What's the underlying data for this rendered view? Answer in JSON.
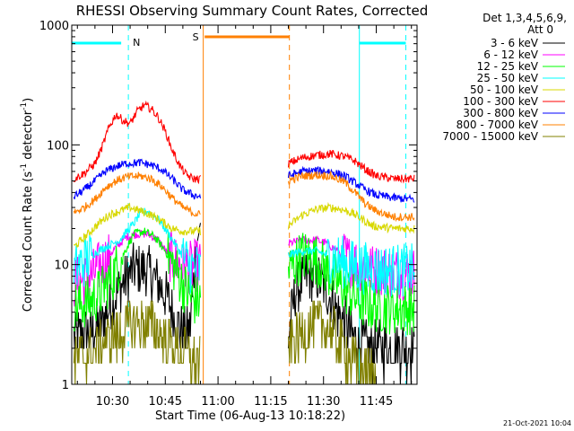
{
  "chart_data": {
    "type": "line",
    "title": "RHESSI Observing Summary Count Rates, Corrected",
    "xlabel": "Start Time (06-Aug-13 10:18:22)",
    "ylabel_main": "Corrected Count Rate (s",
    "ylabel_sup1": "-1",
    "ylabel_mid": " detector",
    "ylabel_sup2": "-1",
    "ylabel_end": ")",
    "yscale": "log",
    "ylim": [
      1,
      1000
    ],
    "xlim_minutes": [
      10.3,
      11.9
    ],
    "y_ticks": [
      {
        "value": 1,
        "label": "1"
      },
      {
        "value": 10,
        "label": "10"
      },
      {
        "value": 100,
        "label": "100"
      },
      {
        "value": 1000,
        "label": "1000"
      }
    ],
    "x_ticks": [
      {
        "value": 30,
        "label": "10:30"
      },
      {
        "value": 45,
        "label": "10:45"
      },
      {
        "value": 60,
        "label": "11:00"
      },
      {
        "value": 75,
        "label": "11:15"
      },
      {
        "value": 90,
        "label": "11:30"
      },
      {
        "value": 105,
        "label": "11:45"
      }
    ],
    "x_range_min": [
      18.4,
      116.6
    ],
    "legend_header": [
      "Det 1,3,4,5,6,9,",
      "Att 0"
    ],
    "series": [
      {
        "name": "3 - 6 keV",
        "color": "#000000",
        "seg1": [
          [
            19,
            2.5
          ],
          [
            24,
            2.7
          ],
          [
            27,
            3.2
          ],
          [
            30,
            5
          ],
          [
            33,
            7
          ],
          [
            36,
            9.2
          ],
          [
            40,
            9
          ],
          [
            43,
            7
          ],
          [
            46,
            5
          ],
          [
            48,
            3.3
          ],
          [
            50,
            2.8
          ],
          [
            52,
            2.9
          ],
          [
            53,
            7
          ],
          [
            54,
            15
          ],
          [
            55,
            22
          ]
        ],
        "seg2": [
          [
            80,
            2.5
          ],
          [
            82,
            6
          ],
          [
            85,
            8
          ],
          [
            88,
            8
          ],
          [
            91,
            6
          ],
          [
            94,
            4
          ],
          [
            97,
            3
          ],
          [
            100,
            2.2
          ],
          [
            103,
            2
          ],
          [
            110,
            2
          ],
          [
            116,
            2
          ]
        ]
      },
      {
        "name": "6 - 12 keV",
        "color": "#ff00ff",
        "seg1": [
          [
            19,
            7
          ],
          [
            24,
            8
          ],
          [
            28,
            11
          ],
          [
            31,
            14
          ],
          [
            34,
            17
          ],
          [
            37,
            18
          ],
          [
            40,
            18
          ],
          [
            43,
            16
          ],
          [
            46,
            12
          ],
          [
            49,
            10
          ],
          [
            52,
            9.5
          ],
          [
            55,
            10
          ]
        ],
        "seg2": [
          [
            80,
            15
          ],
          [
            84,
            16
          ],
          [
            88,
            16
          ],
          [
            91,
            15
          ],
          [
            94,
            13
          ],
          [
            97,
            11
          ],
          [
            100,
            10
          ],
          [
            104,
            9
          ],
          [
            110,
            8.5
          ],
          [
            116,
            8.5
          ]
        ]
      },
      {
        "name": "12 - 25 keV",
        "color": "#00ff00",
        "seg1": [
          [
            19,
            4.5
          ],
          [
            24,
            5
          ],
          [
            27,
            6
          ],
          [
            30,
            8
          ],
          [
            33,
            12
          ],
          [
            36,
            18
          ],
          [
            39,
            19
          ],
          [
            42,
            17
          ],
          [
            45,
            13
          ],
          [
            48,
            9
          ],
          [
            51,
            6
          ],
          [
            53,
            5
          ],
          [
            55,
            5
          ]
        ],
        "seg2": [
          [
            80,
            9
          ],
          [
            84,
            12
          ],
          [
            88,
            11
          ],
          [
            91,
            9
          ],
          [
            94,
            7
          ],
          [
            97,
            6
          ],
          [
            100,
            5
          ],
          [
            104,
            4.5
          ],
          [
            110,
            4.3
          ],
          [
            116,
            4.3
          ]
        ]
      },
      {
        "name": "25 - 50 keV",
        "color": "#00ffff",
        "seg1": [
          [
            19,
            9
          ],
          [
            24,
            12
          ],
          [
            28,
            14
          ],
          [
            32,
            16
          ],
          [
            36,
            22
          ],
          [
            38,
            27
          ],
          [
            40,
            28
          ],
          [
            43,
            24
          ],
          [
            46,
            18
          ],
          [
            49,
            13
          ],
          [
            52,
            9.5
          ],
          [
            55,
            9
          ]
        ],
        "seg2": [
          [
            80,
            12
          ],
          [
            84,
            13
          ],
          [
            88,
            13
          ],
          [
            91,
            12
          ],
          [
            94,
            11
          ],
          [
            97,
            10
          ],
          [
            100,
            9.5
          ],
          [
            106,
            9
          ],
          [
            116,
            9
          ]
        ]
      },
      {
        "name": "50 - 100 keV",
        "color": "#d8d800",
        "seg1": [
          [
            19,
            14
          ],
          [
            23,
            18
          ],
          [
            26,
            22
          ],
          [
            29,
            26
          ],
          [
            32,
            28
          ],
          [
            35,
            30
          ],
          [
            38,
            28
          ],
          [
            41,
            26
          ],
          [
            44,
            23
          ],
          [
            47,
            20
          ],
          [
            50,
            19
          ],
          [
            55,
            19
          ]
        ],
        "seg2": [
          [
            80,
            21
          ],
          [
            84,
            26
          ],
          [
            88,
            29
          ],
          [
            92,
            30
          ],
          [
            95,
            29
          ],
          [
            98,
            27
          ],
          [
            101,
            24
          ],
          [
            104,
            21
          ],
          [
            110,
            20
          ],
          [
            116,
            20
          ]
        ]
      },
      {
        "name": "100 - 300 keV",
        "color": "#ff0000",
        "seg1": [
          [
            19,
            52
          ],
          [
            22,
            58
          ],
          [
            25,
            70
          ],
          [
            27,
            95
          ],
          [
            29,
            140
          ],
          [
            31,
            180
          ],
          [
            33,
            160
          ],
          [
            35,
            150
          ],
          [
            37,
            190
          ],
          [
            39,
            215
          ],
          [
            41,
            200
          ],
          [
            43,
            170
          ],
          [
            45,
            130
          ],
          [
            47,
            90
          ],
          [
            49,
            68
          ],
          [
            51,
            56
          ],
          [
            53,
            52
          ],
          [
            55,
            52
          ]
        ],
        "seg2": [
          [
            80,
            70
          ],
          [
            84,
            78
          ],
          [
            88,
            82
          ],
          [
            92,
            84
          ],
          [
            96,
            80
          ],
          [
            99,
            73
          ],
          [
            102,
            62
          ],
          [
            105,
            55
          ],
          [
            110,
            52
          ],
          [
            116,
            52
          ]
        ]
      },
      {
        "name": "300 - 800 keV",
        "color": "#0000ff",
        "seg1": [
          [
            19,
            37
          ],
          [
            22,
            42
          ],
          [
            25,
            50
          ],
          [
            28,
            60
          ],
          [
            31,
            66
          ],
          [
            34,
            70
          ],
          [
            38,
            71
          ],
          [
            41,
            68
          ],
          [
            44,
            62
          ],
          [
            47,
            52
          ],
          [
            50,
            42
          ],
          [
            53,
            38
          ],
          [
            55,
            37
          ]
        ],
        "seg2": [
          [
            80,
            55
          ],
          [
            84,
            60
          ],
          [
            88,
            61
          ],
          [
            92,
            60
          ],
          [
            96,
            55
          ],
          [
            99,
            48
          ],
          [
            102,
            42
          ],
          [
            105,
            38
          ],
          [
            110,
            36
          ],
          [
            116,
            35
          ]
        ]
      },
      {
        "name": "800 - 7000 keV",
        "color": "#ff8000",
        "seg1": [
          [
            19,
            27
          ],
          [
            22,
            30
          ],
          [
            25,
            35
          ],
          [
            28,
            44
          ],
          [
            31,
            50
          ],
          [
            34,
            54
          ],
          [
            38,
            55
          ],
          [
            41,
            52
          ],
          [
            44,
            45
          ],
          [
            47,
            36
          ],
          [
            50,
            30
          ],
          [
            53,
            27
          ],
          [
            55,
            26
          ]
        ],
        "seg2": [
          [
            80,
            50
          ],
          [
            84,
            55
          ],
          [
            88,
            56
          ],
          [
            92,
            55
          ],
          [
            96,
            49
          ],
          [
            99,
            40
          ],
          [
            102,
            32
          ],
          [
            105,
            28
          ],
          [
            110,
            25
          ],
          [
            116,
            25
          ]
        ]
      },
      {
        "name": "7000 - 15000 keV",
        "color": "#808000",
        "seg1": [
          [
            19,
            1.6
          ],
          [
            23,
            1.8
          ],
          [
            27,
            2.2
          ],
          [
            31,
            2.5
          ],
          [
            34,
            3
          ],
          [
            38,
            3.3
          ],
          [
            42,
            3
          ],
          [
            45,
            2.4
          ],
          [
            48,
            1.9
          ],
          [
            51,
            1.7
          ],
          [
            55,
            1.6
          ]
        ],
        "seg2": [
          [
            80,
            2
          ],
          [
            83,
            2.5
          ],
          [
            86,
            3
          ],
          [
            89,
            3.2
          ],
          [
            92,
            2.8
          ],
          [
            95,
            2.2
          ],
          [
            98,
            1.6
          ],
          [
            101,
            1.3
          ],
          [
            105,
            1.2
          ]
        ]
      }
    ],
    "markers": [
      {
        "label": "N",
        "color": "#00ffff",
        "x": 34.5
      },
      {
        "label": "S",
        "color": "#ff8000",
        "x": 58.5
      }
    ],
    "timestamp": "21-Oct-2021 10:04"
  }
}
